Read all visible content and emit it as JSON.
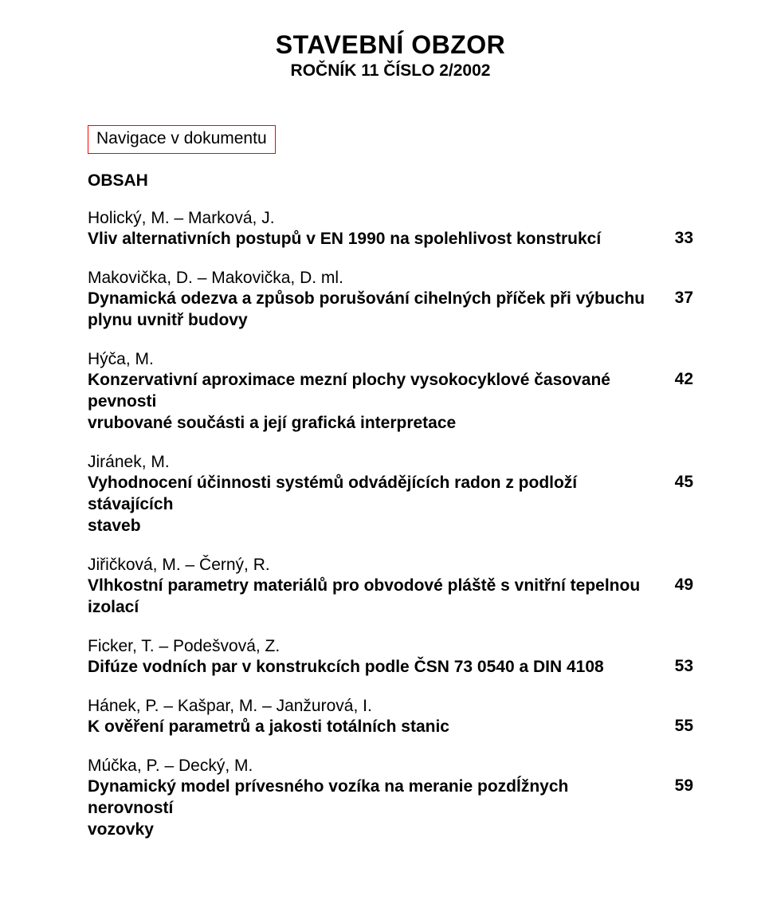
{
  "header": {
    "title": "STAVEBNÍ OBZOR",
    "subtitle": "ROČNÍK 11 ČÍSLO 2/2002"
  },
  "nav_label": "Navigace v dokumentu",
  "obsah_label": "OBSAH",
  "colors": {
    "text": "#000000",
    "background": "#ffffff",
    "nav_border": "#ff0000"
  },
  "typography": {
    "title_fontsize_pt": 24,
    "subtitle_fontsize_pt": 16,
    "body_fontsize_pt": 16,
    "font_family": "Arial"
  },
  "entries": [
    {
      "authors": "Holický, M. – Marková, J.",
      "title_line1": "Vliv alternativních postupů v EN 1990 na spolehlivost konstrukcí",
      "title_line2": "",
      "page": "33"
    },
    {
      "authors": "Makovička, D. – Makovička, D. ml.",
      "title_line1": "Dynamická odezva a způsob porušování cihelných příček při výbuchu",
      "title_line2": "plynu uvnitř budovy",
      "page": "37"
    },
    {
      "authors": "Hýča, M.",
      "title_line1": "Konzervativní aproximace mezní plochy vysokocyklové časované pevnosti",
      "title_line2": "vrubované součásti a její grafická interpretace",
      "page": "42"
    },
    {
      "authors": "Jiránek, M.",
      "title_line1": "Vyhodnocení účinnosti systémů odvádějících radon z podloží stávajících",
      "title_line2": "staveb",
      "page": "45"
    },
    {
      "authors": "Jiřičková, M. – Černý, R.",
      "title_line1": "Vlhkostní parametry materiálů pro obvodové pláště s vnitřní tepelnou",
      "title_line2": "izolací",
      "page": "49"
    },
    {
      "authors": "Ficker, T. – Podešvová, Z.",
      "title_line1": "Difúze vodních par v konstrukcích podle ČSN 73 0540 a DIN 4108",
      "title_line2": "",
      "page": "53"
    },
    {
      "authors": "Hánek, P. – Kašpar, M. – Janžurová, I.",
      "title_line1": "K ověření parametrů a jakosti totálních stanic",
      "title_line2": "",
      "page": "55"
    },
    {
      "authors": "Múčka, P. – Decký, M.",
      "title_line1": "Dynamický model prívesného vozíka na meranie pozdĺžnych nerovností",
      "title_line2": "vozovky",
      "page": "59"
    }
  ]
}
